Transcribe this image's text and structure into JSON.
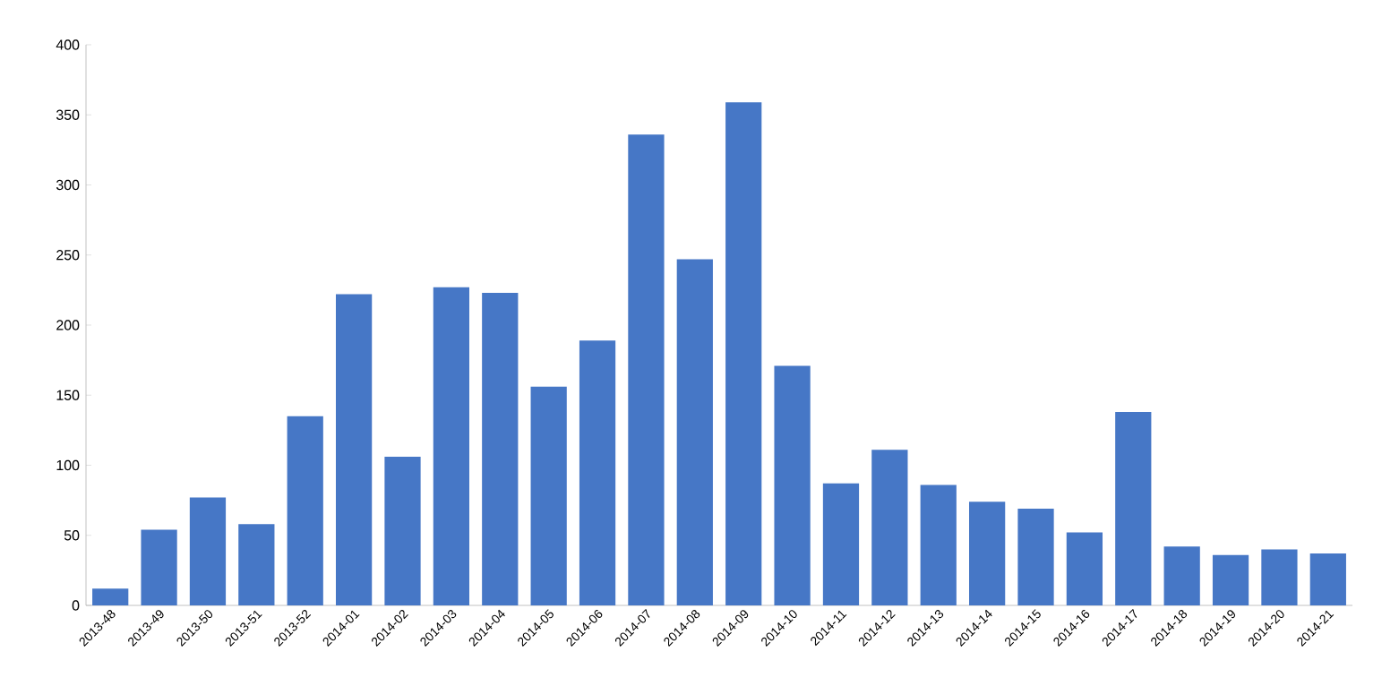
{
  "chart_data": {
    "type": "bar",
    "categories": [
      "2013-48",
      "2013-49",
      "2013-50",
      "2013-51",
      "2013-52",
      "2014-01",
      "2014-02",
      "2014-03",
      "2014-04",
      "2014-05",
      "2014-06",
      "2014-07",
      "2014-08",
      "2014-09",
      "2014-10",
      "2014-11",
      "2014-12",
      "2014-13",
      "2014-14",
      "2014-15",
      "2014-16",
      "2014-17",
      "2014-18",
      "2014-19",
      "2014-20",
      "2014-21"
    ],
    "values": [
      12,
      54,
      77,
      58,
      135,
      222,
      106,
      227,
      223,
      156,
      189,
      336,
      247,
      359,
      171,
      87,
      111,
      86,
      74,
      69,
      52,
      138,
      42,
      36,
      40,
      37
    ],
    "color": "#4677c6",
    "ylim": [
      0,
      400
    ],
    "yticks": [
      0,
      50,
      100,
      150,
      200,
      250,
      300,
      350,
      400
    ],
    "grid": false
  }
}
